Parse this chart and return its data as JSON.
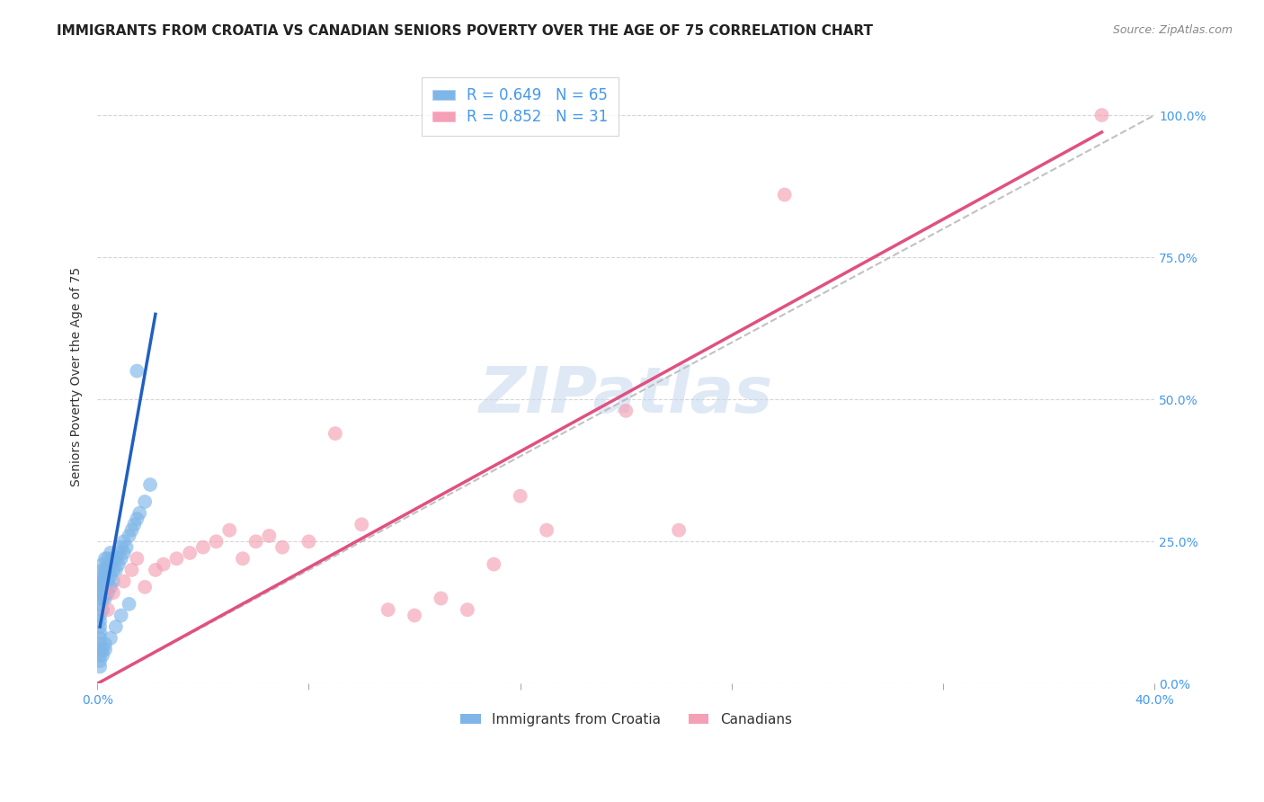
{
  "title": "IMMIGRANTS FROM CROATIA VS CANADIAN SENIORS POVERTY OVER THE AGE OF 75 CORRELATION CHART",
  "source": "Source: ZipAtlas.com",
  "xlabel": "",
  "ylabel": "Seniors Poverty Over the Age of 75",
  "xlim": [
    0.0,
    0.4
  ],
  "ylim": [
    0.0,
    1.08
  ],
  "xticks": [
    0.0,
    0.08,
    0.16,
    0.24,
    0.32,
    0.4
  ],
  "xtick_labels": [
    "0.0%",
    "",
    "",
    "",
    "",
    "40.0%"
  ],
  "ytick_labels_right": [
    "0.0%",
    "25.0%",
    "50.0%",
    "75.0%",
    "100.0%"
  ],
  "ytick_vals_right": [
    0.0,
    0.25,
    0.5,
    0.75,
    1.0
  ],
  "blue_R": "0.649",
  "blue_N": "65",
  "pink_R": "0.852",
  "pink_N": "31",
  "legend_label_blue": "Immigrants from Croatia",
  "legend_label_pink": "Canadians",
  "blue_color": "#7EB6E8",
  "pink_color": "#F4A0B5",
  "blue_line_color": "#2060C0",
  "pink_line_color": "#E05080",
  "watermark": "ZIPatlas",
  "blue_scatter_x": [
    0.001,
    0.001,
    0.001,
    0.001,
    0.001,
    0.001,
    0.001,
    0.001,
    0.001,
    0.001,
    0.002,
    0.002,
    0.002,
    0.002,
    0.002,
    0.002,
    0.002,
    0.002,
    0.003,
    0.003,
    0.003,
    0.003,
    0.003,
    0.003,
    0.004,
    0.004,
    0.004,
    0.004,
    0.005,
    0.005,
    0.005,
    0.005,
    0.006,
    0.006,
    0.006,
    0.007,
    0.007,
    0.008,
    0.008,
    0.009,
    0.009,
    0.01,
    0.01,
    0.011,
    0.012,
    0.013,
    0.014,
    0.015,
    0.016,
    0.018,
    0.02,
    0.001,
    0.001,
    0.001,
    0.001,
    0.001,
    0.002,
    0.002,
    0.003,
    0.003,
    0.005,
    0.007,
    0.009,
    0.012,
    0.015
  ],
  "blue_scatter_y": [
    0.1,
    0.12,
    0.14,
    0.15,
    0.16,
    0.17,
    0.18,
    0.08,
    0.09,
    0.11,
    0.13,
    0.15,
    0.16,
    0.17,
    0.18,
    0.19,
    0.2,
    0.21,
    0.15,
    0.17,
    0.18,
    0.19,
    0.2,
    0.22,
    0.16,
    0.18,
    0.2,
    0.22,
    0.17,
    0.19,
    0.21,
    0.23,
    0.18,
    0.2,
    0.22,
    0.2,
    0.22,
    0.21,
    0.23,
    0.22,
    0.24,
    0.23,
    0.25,
    0.24,
    0.26,
    0.27,
    0.28,
    0.29,
    0.3,
    0.32,
    0.35,
    0.05,
    0.06,
    0.07,
    0.04,
    0.03,
    0.05,
    0.06,
    0.06,
    0.07,
    0.08,
    0.1,
    0.12,
    0.14,
    0.55
  ],
  "pink_scatter_x": [
    0.004,
    0.006,
    0.01,
    0.013,
    0.015,
    0.018,
    0.022,
    0.025,
    0.03,
    0.035,
    0.04,
    0.045,
    0.05,
    0.055,
    0.06,
    0.065,
    0.07,
    0.08,
    0.09,
    0.1,
    0.11,
    0.12,
    0.13,
    0.14,
    0.15,
    0.16,
    0.17,
    0.2,
    0.22,
    0.26,
    0.38
  ],
  "pink_scatter_y": [
    0.13,
    0.16,
    0.18,
    0.2,
    0.22,
    0.17,
    0.2,
    0.21,
    0.22,
    0.23,
    0.24,
    0.25,
    0.27,
    0.22,
    0.25,
    0.26,
    0.24,
    0.25,
    0.44,
    0.28,
    0.13,
    0.12,
    0.15,
    0.13,
    0.21,
    0.33,
    0.27,
    0.48,
    0.27,
    0.86,
    1.0
  ],
  "title_fontsize": 11,
  "axis_label_fontsize": 10,
  "tick_fontsize": 10,
  "watermark_fontsize": 52,
  "blue_line_x": [
    0.001,
    0.022
  ],
  "blue_line_y": [
    0.1,
    0.65
  ],
  "pink_line_x": [
    0.0,
    0.38
  ],
  "pink_line_y": [
    0.0,
    0.97
  ]
}
